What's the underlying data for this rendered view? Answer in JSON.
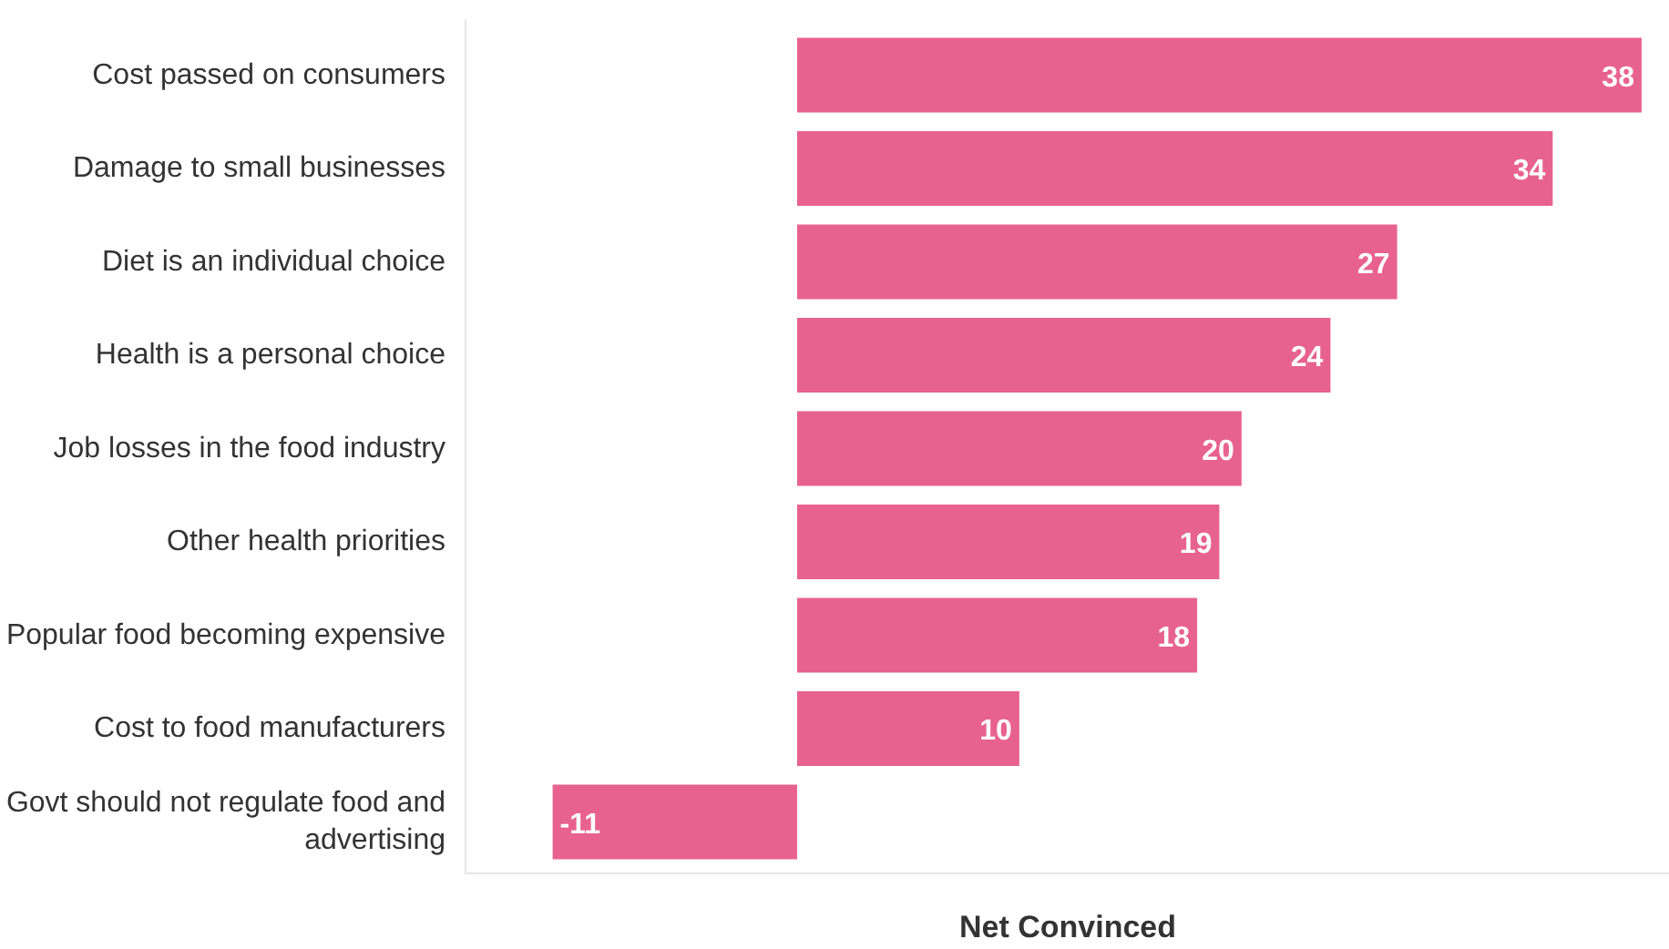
{
  "chart_data": {
    "type": "bar",
    "orientation": "horizontal",
    "xlabel": "Net Convinced",
    "categories": [
      "Cost passed on consumers",
      "Damage to small businesses",
      "Diet is an individual choice",
      "Health is a personal choice",
      "Job losses in the food industry",
      "Other health priorities",
      "Popular food becoming expensive",
      "Cost to food manufacturers",
      "Govt should not regulate food and advertising"
    ],
    "values": [
      38,
      34,
      27,
      24,
      20,
      19,
      18,
      10,
      -11
    ],
    "color": "#e8628f",
    "data_labels": true,
    "grid": false
  }
}
